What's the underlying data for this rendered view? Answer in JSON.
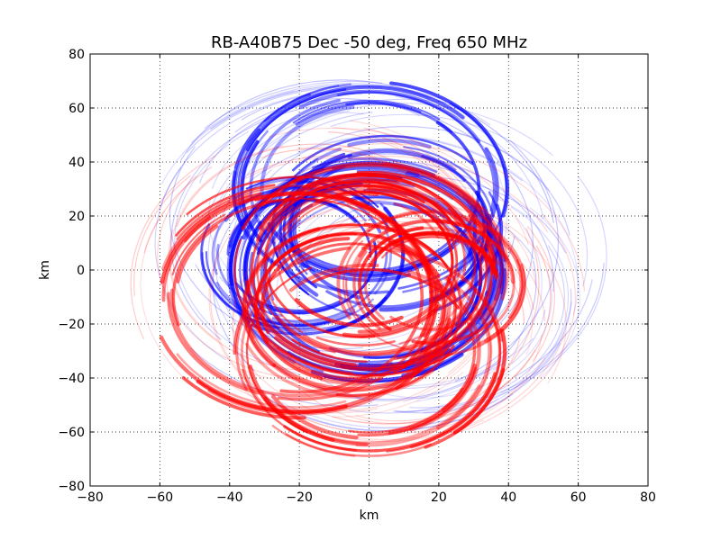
{
  "chart_data": {
    "type": "scatter",
    "title": "RB-A40B75 Dec -50 deg, Freq 650 MHz",
    "xlabel": "km",
    "ylabel": "km",
    "xlim": [
      -80,
      80
    ],
    "ylim": [
      -80,
      80
    ],
    "xticks": [
      -80,
      -60,
      -40,
      -20,
      0,
      20,
      40,
      60,
      80
    ],
    "yticks": [
      -80,
      -60,
      -40,
      -20,
      0,
      20,
      40,
      60,
      80
    ],
    "x_tick_labels": [
      "−80",
      "−60",
      "−40",
      "−20",
      "0",
      "20",
      "40",
      "60",
      "80"
    ],
    "y_tick_labels": [
      "−80",
      "−60",
      "−40",
      "−20",
      "0",
      "20",
      "40",
      "60",
      "80"
    ],
    "grid": true,
    "grid_style": "dotted",
    "legend": "none",
    "series": [
      {
        "color": "#0000ff",
        "values": [
          {
            "x": 0,
            "y": 0,
            "radius": 38
          },
          {
            "x": 2,
            "y": -3,
            "radius": 32
          },
          {
            "x": -20,
            "y": 6,
            "radius": 25
          },
          {
            "x": 5,
            "y": 15,
            "radius": 30
          },
          {
            "x": -5,
            "y": 10,
            "radius": 55
          },
          {
            "x": 5,
            "y": -5,
            "radius": 48
          },
          {
            "x": 10,
            "y": 5,
            "radius": 52
          },
          {
            "x": -8,
            "y": 20,
            "radius": 45
          },
          {
            "x": 15,
            "y": -10,
            "radius": 42
          },
          {
            "x": 0,
            "y": 30,
            "radius": 35
          }
        ]
      },
      {
        "color": "#ff0000",
        "values": [
          {
            "x": 0,
            "y": 0,
            "radius": 35
          },
          {
            "x": -2,
            "y": 3,
            "radius": 28
          },
          {
            "x": 18,
            "y": -5,
            "radius": 22
          },
          {
            "x": -5,
            "y": -14,
            "radius": 28
          },
          {
            "x": 5,
            "y": -10,
            "radius": 50
          },
          {
            "x": -10,
            "y": -5,
            "radius": 52
          },
          {
            "x": -15,
            "y": 5,
            "radius": 45
          },
          {
            "x": 8,
            "y": -20,
            "radius": 42
          },
          {
            "x": -20,
            "y": -10,
            "radius": 40
          },
          {
            "x": 0,
            "y": -30,
            "radius": 35
          }
        ]
      }
    ]
  }
}
